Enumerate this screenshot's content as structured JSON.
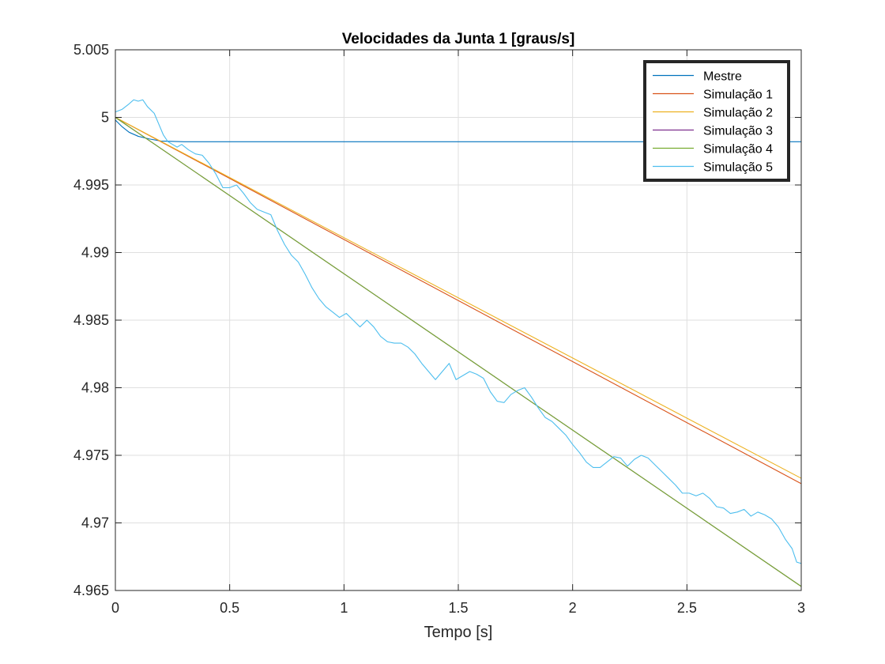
{
  "chart_data": {
    "type": "line",
    "title": "Velocidades da Junta 1 [graus/s]",
    "xlabel": "Tempo [s]",
    "ylabel": "",
    "xlim": [
      0,
      3
    ],
    "ylim": [
      4.965,
      5.005
    ],
    "xticks": [
      0,
      0.5,
      1,
      1.5,
      2,
      2.5,
      3
    ],
    "xtick_labels": [
      "0",
      "0.5",
      "1",
      "1.5",
      "2",
      "2.5",
      "3"
    ],
    "yticks": [
      4.965,
      4.97,
      4.975,
      4.98,
      4.985,
      4.99,
      4.995,
      5,
      5.005
    ],
    "ytick_labels": [
      "4.965",
      "4.97",
      "4.975",
      "4.98",
      "4.985",
      "4.99",
      "4.995",
      "5",
      "5.005"
    ],
    "grid": true,
    "legend_position": "top-right",
    "series": [
      {
        "name": "Mestre",
        "color": "#0072BD",
        "points": [
          [
            0,
            4.9998
          ],
          [
            0.03,
            4.9993
          ],
          [
            0.06,
            4.9989
          ],
          [
            0.1,
            4.9986
          ],
          [
            0.15,
            4.9984
          ],
          [
            0.2,
            4.99825
          ],
          [
            0.3,
            4.9982
          ],
          [
            0.5,
            4.9982
          ],
          [
            1,
            4.9982
          ],
          [
            1.5,
            4.9982
          ],
          [
            2,
            4.9982
          ],
          [
            2.5,
            4.9982
          ],
          [
            3,
            4.9982
          ]
        ]
      },
      {
        "name": "Simulação 1",
        "color": "#D95319",
        "points": [
          [
            0,
            5.0
          ],
          [
            3,
            4.9729
          ]
        ]
      },
      {
        "name": "Simulação 2",
        "color": "#EDB120",
        "points": [
          [
            0,
            5.0
          ],
          [
            3,
            4.9733
          ]
        ]
      },
      {
        "name": "Simulação 3",
        "color": "#7E2F8E",
        "points": [
          [
            0,
            5.0
          ],
          [
            3,
            4.9653
          ]
        ]
      },
      {
        "name": "Simulação 4",
        "color": "#77AC30",
        "points": [
          [
            0,
            5.0
          ],
          [
            3,
            4.9653
          ]
        ]
      },
      {
        "name": "Simulação 5",
        "color": "#4DBEEE",
        "points": [
          [
            0,
            5.0004
          ],
          [
            0.03,
            5.0006
          ],
          [
            0.06,
            5.001
          ],
          [
            0.08,
            5.0013
          ],
          [
            0.1,
            5.0012
          ],
          [
            0.12,
            5.0013
          ],
          [
            0.14,
            5.0008
          ],
          [
            0.17,
            5.0003
          ],
          [
            0.19,
            4.9995
          ],
          [
            0.21,
            4.9987
          ],
          [
            0.23,
            4.9982
          ],
          [
            0.25,
            4.998
          ],
          [
            0.27,
            4.9978
          ],
          [
            0.29,
            4.998
          ],
          [
            0.32,
            4.9976
          ],
          [
            0.35,
            4.9973
          ],
          [
            0.38,
            4.9972
          ],
          [
            0.41,
            4.9966
          ],
          [
            0.44,
            4.9958
          ],
          [
            0.47,
            4.9948
          ],
          [
            0.5,
            4.9948
          ],
          [
            0.53,
            4.995
          ],
          [
            0.56,
            4.9944
          ],
          [
            0.59,
            4.9937
          ],
          [
            0.62,
            4.9932
          ],
          [
            0.65,
            4.993
          ],
          [
            0.68,
            4.9928
          ],
          [
            0.71,
            4.9916
          ],
          [
            0.74,
            4.9906
          ],
          [
            0.77,
            4.9898
          ],
          [
            0.8,
            4.9893
          ],
          [
            0.83,
            4.9884
          ],
          [
            0.86,
            4.9874
          ],
          [
            0.89,
            4.9866
          ],
          [
            0.92,
            4.986
          ],
          [
            0.95,
            4.9856
          ],
          [
            0.98,
            4.9852
          ],
          [
            1.01,
            4.9855
          ],
          [
            1.04,
            4.985
          ],
          [
            1.07,
            4.9845
          ],
          [
            1.1,
            4.985
          ],
          [
            1.13,
            4.9845
          ],
          [
            1.16,
            4.9838
          ],
          [
            1.19,
            4.9834
          ],
          [
            1.22,
            4.9833
          ],
          [
            1.25,
            4.9833
          ],
          [
            1.28,
            4.983
          ],
          [
            1.31,
            4.9825
          ],
          [
            1.34,
            4.9818
          ],
          [
            1.37,
            4.9812
          ],
          [
            1.4,
            4.9806
          ],
          [
            1.43,
            4.9812
          ],
          [
            1.46,
            4.9818
          ],
          [
            1.49,
            4.9806
          ],
          [
            1.52,
            4.9809
          ],
          [
            1.55,
            4.9812
          ],
          [
            1.58,
            4.981
          ],
          [
            1.61,
            4.9807
          ],
          [
            1.64,
            4.9797
          ],
          [
            1.67,
            4.979
          ],
          [
            1.7,
            4.9789
          ],
          [
            1.73,
            4.9795
          ],
          [
            1.76,
            4.9798
          ],
          [
            1.79,
            4.98
          ],
          [
            1.82,
            4.9793
          ],
          [
            1.85,
            4.9785
          ],
          [
            1.88,
            4.9778
          ],
          [
            1.91,
            4.9775
          ],
          [
            1.94,
            4.977
          ],
          [
            1.97,
            4.9765
          ],
          [
            2.0,
            4.9758
          ],
          [
            2.03,
            4.9752
          ],
          [
            2.06,
            4.9745
          ],
          [
            2.09,
            4.9741
          ],
          [
            2.12,
            4.9741
          ],
          [
            2.15,
            4.9745
          ],
          [
            2.18,
            4.9749
          ],
          [
            2.21,
            4.9748
          ],
          [
            2.24,
            4.9742
          ],
          [
            2.27,
            4.9747
          ],
          [
            2.3,
            4.975
          ],
          [
            2.33,
            4.9748
          ],
          [
            2.36,
            4.9743
          ],
          [
            2.39,
            4.9738
          ],
          [
            2.42,
            4.9733
          ],
          [
            2.45,
            4.9728
          ],
          [
            2.48,
            4.9722
          ],
          [
            2.51,
            4.9722
          ],
          [
            2.54,
            4.972
          ],
          [
            2.57,
            4.9722
          ],
          [
            2.6,
            4.9718
          ],
          [
            2.63,
            4.9712
          ],
          [
            2.66,
            4.9711
          ],
          [
            2.69,
            4.9707
          ],
          [
            2.72,
            4.9708
          ],
          [
            2.75,
            4.971
          ],
          [
            2.78,
            4.9705
          ],
          [
            2.81,
            4.9708
          ],
          [
            2.84,
            4.9706
          ],
          [
            2.87,
            4.9703
          ],
          [
            2.9,
            4.9697
          ],
          [
            2.93,
            4.9688
          ],
          [
            2.96,
            4.9681
          ],
          [
            2.98,
            4.9671
          ],
          [
            3.0,
            4.967
          ]
        ]
      }
    ]
  }
}
